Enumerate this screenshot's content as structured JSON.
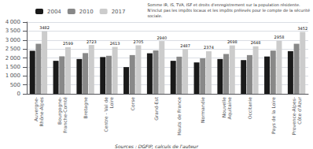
{
  "chart_data": {
    "type": "bar",
    "categories": [
      "Auvergne-\nRhône-Alpes",
      "Bourgogne-\nFranche-Comté",
      "Bretagne",
      "Centre - Val de\nLoire",
      "Corse",
      "Grand-Est",
      "Hauts de France",
      "Normandie",
      "Nouvelle\nAquitaine",
      "Occitanie",
      "Pays de la Loire",
      "Provence-Alpes-\nCôte d'Azur"
    ],
    "series": [
      {
        "name": "2004",
        "color": "#1a1a1a",
        "values": [
          2400,
          1840,
          1940,
          2050,
          1490,
          2260,
          1840,
          1750,
          1940,
          1880,
          2080,
          2380
        ]
      },
      {
        "name": "2010",
        "color": "#888888",
        "values": [
          2790,
          2090,
          2270,
          2120,
          2160,
          2420,
          2070,
          1980,
          2220,
          2160,
          2410,
          2790
        ]
      },
      {
        "name": "2017",
        "color": "#cccccc",
        "data_labels": true,
        "values": [
          3482,
          2599,
          2723,
          2613,
          2705,
          2940,
          2487,
          2374,
          2698,
          2648,
          2958,
          3452
        ]
      }
    ],
    "ylim": [
      0,
      4000
    ],
    "yticks": [
      0,
      500,
      {
        "value": 1000,
        "label": "1 000"
      },
      {
        "value": 1500,
        "label": "1 500"
      },
      {
        "value": 2000,
        "label": "2 000"
      },
      {
        "value": 2500,
        "label": "2 500"
      },
      {
        "value": 3000,
        "label": "3 000"
      },
      {
        "value": 3500,
        "label": "3 500"
      },
      {
        "value": 4000,
        "label": "4 000"
      }
    ],
    "grid": true,
    "legend": "top",
    "annotations": [
      "Somme IR, IS, TVA, ISF et droits d'enregistrement sur la population résidente.\nN'inclut pas les impôts locaux et les impôts prélevés pour le compte de la sécurité\nsociale.",
      "Sources : DGFIP, calculs de l'auteur"
    ]
  }
}
